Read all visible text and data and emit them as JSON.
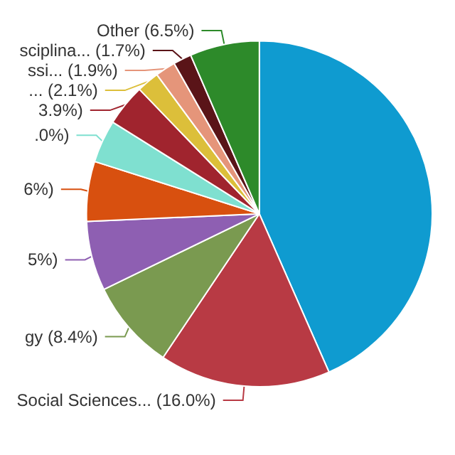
{
  "chart_data": {
    "type": "pie",
    "categories": [
      null,
      "Social Sciences... (16.0%)",
      "gy (8.4%)",
      "5%)",
      "6%)",
      ".0%)",
      "3.9%)",
      "... (2.1%)",
      "ssi... (1.9%)",
      "sciplina... (1.7%)",
      "Other (6.5%)"
    ],
    "values": [
      43.4,
      16.0,
      8.4,
      6.5,
      5.6,
      4.0,
      3.9,
      2.1,
      1.9,
      1.7,
      6.5
    ],
    "colors": [
      "#0f9bd0",
      "#b83a44",
      "#7a9a50",
      "#8e5fb2",
      "#d8500f",
      "#7fe0d0",
      "#a0242e",
      "#dcbf3a",
      "#e5957a",
      "#5a1418",
      "#2d8a2a"
    ],
    "legend": false
  }
}
